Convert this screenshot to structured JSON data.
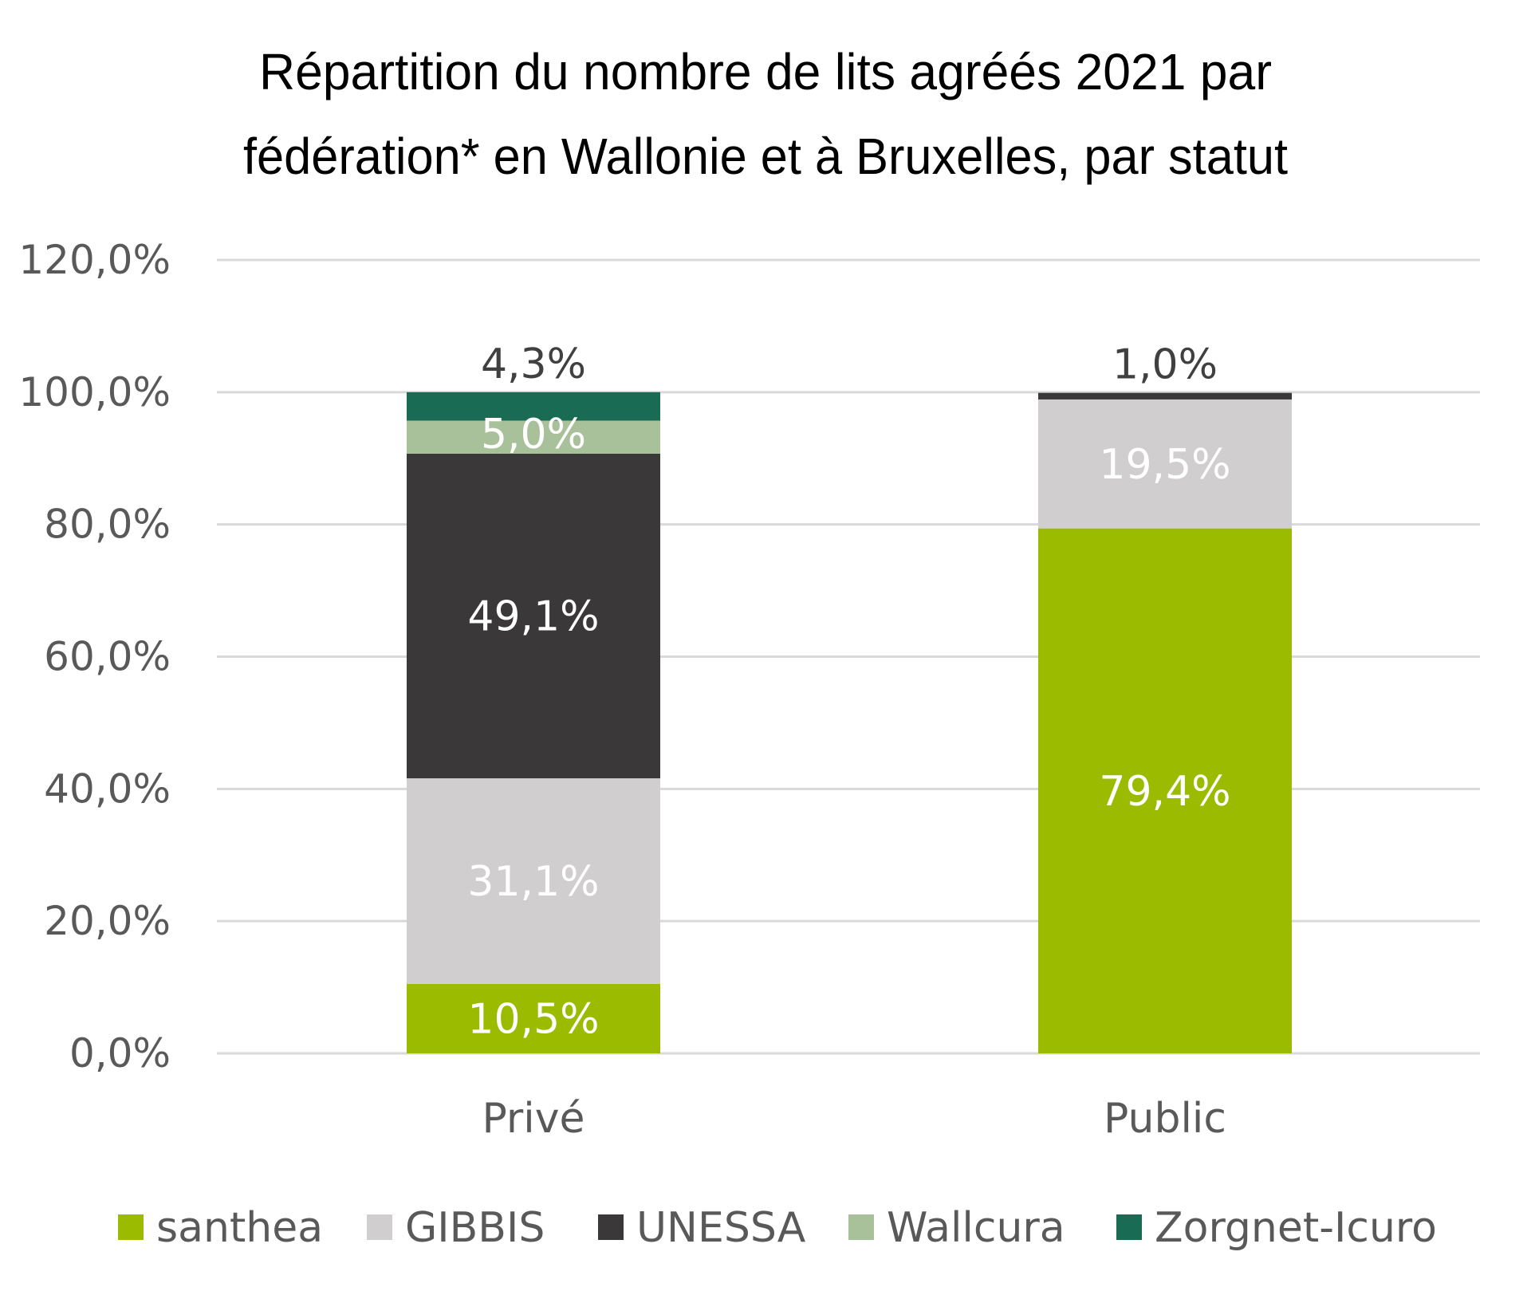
{
  "chart_data": {
    "type": "bar",
    "stacked": true,
    "title_lines": [
      "Répartition du nombre de lits agréés 2021 par",
      "fédération* en Wallonie et à Bruxelles, par statut"
    ],
    "categories": [
      "Privé",
      "Public"
    ],
    "ylim": [
      0,
      120
    ],
    "yticks": [
      0,
      20,
      40,
      60,
      80,
      100,
      120
    ],
    "ytick_labels": [
      "0,0%",
      "20,0%",
      "40,0%",
      "60,0%",
      "80,0%",
      "100,0%",
      "120,0%"
    ],
    "grid": true,
    "legend_position": "bottom",
    "series": [
      {
        "name": "santhea",
        "color": "#9bbb00",
        "values": [
          10.5,
          79.4
        ],
        "labels": [
          "10,5%",
          "79,4%"
        ],
        "label_colors": [
          "#ffffff",
          "#ffffff"
        ]
      },
      {
        "name": "GIBBIS",
        "color": "#d0cece",
        "values": [
          31.1,
          19.5
        ],
        "labels": [
          "31,1%",
          "19,5%"
        ],
        "label_colors": [
          "#ffffff",
          "#ffffff"
        ]
      },
      {
        "name": "UNESSA",
        "color": "#3a3838",
        "values": [
          49.1,
          1.0
        ],
        "labels": [
          "49,1%",
          "1,0%"
        ],
        "label_colors": [
          "#ffffff",
          "#404040"
        ],
        "label_outside": [
          false,
          true
        ]
      },
      {
        "name": "Wallcura",
        "color": "#a9c19a",
        "values": [
          5.0,
          0
        ],
        "labels": [
          "5,0%",
          ""
        ],
        "label_colors": [
          "#ffffff",
          "#ffffff"
        ]
      },
      {
        "name": "Zorgnet-Icuro",
        "color": "#1a6b54",
        "values": [
          4.3,
          0
        ],
        "labels": [
          "4,3%",
          ""
        ],
        "label_colors": [
          "#404040",
          "#404040"
        ],
        "label_outside": [
          true,
          false
        ]
      }
    ]
  }
}
